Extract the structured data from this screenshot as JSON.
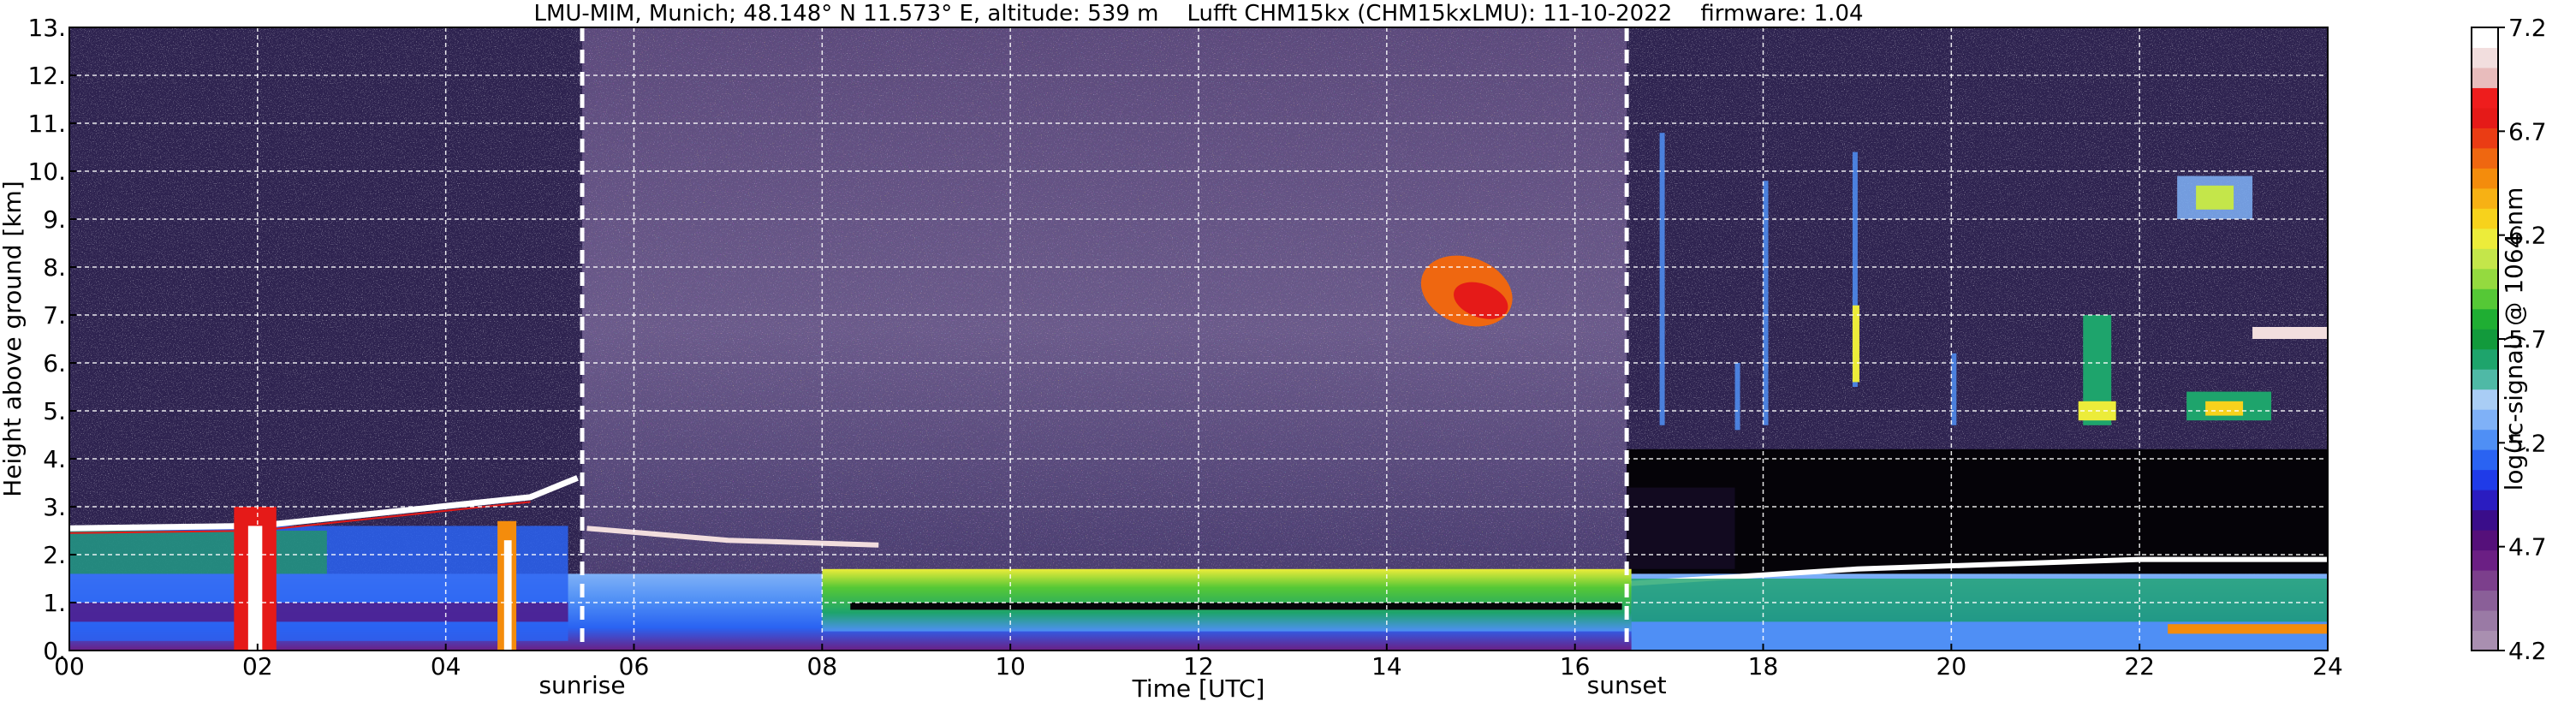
{
  "chart_data": {
    "type": "heatmap",
    "title": "LMU-MIM, Munich; 48.148° N 11.573° E, altitude: 539 m    Lufft CHM15kx (CHM15kxLMU): 11-10-2022    firmware: 1.04",
    "xlabel": "Time [UTC]",
    "ylabel": "Height above ground [km]",
    "xlim": [
      0,
      24
    ],
    "ylim": [
      0,
      13
    ],
    "x_ticks": [
      0,
      2,
      4,
      6,
      8,
      10,
      12,
      14,
      16,
      18,
      20,
      22,
      24
    ],
    "x_tick_labels": [
      "00",
      "02",
      "04",
      "06",
      "08",
      "10",
      "12",
      "14",
      "16",
      "18",
      "20",
      "22",
      "24"
    ],
    "y_ticks": [
      0,
      1,
      2,
      3,
      4,
      5,
      6,
      7,
      8,
      9,
      10,
      11,
      12,
      13
    ],
    "y_tick_labels": [
      "0.",
      "1.",
      "2.",
      "3.",
      "4.",
      "5.",
      "6.",
      "7.",
      "8.",
      "9.",
      "10.",
      "11.",
      "12.",
      "13."
    ],
    "grid": true,
    "markers": [
      {
        "label": "sunrise",
        "x": 5.45
      },
      {
        "label": "sunset",
        "x": 16.55
      }
    ],
    "colorbar": {
      "label": "log(rc-signal) @ 1064 nm",
      "min": 4.2,
      "max": 7.2,
      "tick_values": [
        4.2,
        4.7,
        5.2,
        5.7,
        6.2,
        6.7,
        7.2
      ],
      "tick_labels": [
        "4.2",
        "4.7",
        "5.2",
        "5.7",
        "6.2",
        "6.7",
        "7.2"
      ],
      "colors": [
        "#a98fb0",
        "#9a7aa5",
        "#8a5f98",
        "#7c3f8c",
        "#6b1f84",
        "#55107a",
        "#3a0d8a",
        "#2a1cc0",
        "#1f3be8",
        "#2a63f2",
        "#4f8ff5",
        "#7fb1f7",
        "#a9cdf5",
        "#4fb9a6",
        "#1ea46c",
        "#129a3c",
        "#1fae33",
        "#55c836",
        "#94da3f",
        "#c4e64a",
        "#ecec3a",
        "#f7d21c",
        "#f7b114",
        "#f48c0c",
        "#ef6710",
        "#ea3c14",
        "#e51a18",
        "#ee1d1d",
        "#e8bcbc",
        "#f2dede",
        "#ffffff"
      ]
    },
    "regions": [
      {
        "kind": "boundary_layer",
        "x": [
          0,
          24
        ],
        "y": [
          0,
          1.9
        ]
      },
      {
        "kind": "aerosol_layer_top",
        "x": [
          0,
          5.4
        ],
        "y": [
          2.3,
          3.7
        ]
      },
      {
        "kind": "noise_daylight",
        "x": [
          5.45,
          16.55
        ],
        "y": [
          1.5,
          13
        ]
      },
      {
        "kind": "cirrus_cloud",
        "x": [
          14.4,
          15.4
        ],
        "y": [
          6.8,
          8.2
        ]
      },
      {
        "kind": "cirrus_cloud",
        "x": [
          22.3,
          23.2
        ],
        "y": [
          8.9,
          9.9
        ]
      },
      {
        "kind": "mid_level_cloud",
        "x": [
          21.4,
          24
        ],
        "y": [
          4.6,
          7.0
        ]
      },
      {
        "kind": "precipitation_streak",
        "x": [
          1.7,
          2.2
        ],
        "y": [
          0,
          3.0
        ]
      },
      {
        "kind": "precipitation_streak",
        "x": [
          4.5,
          4.8
        ],
        "y": [
          0,
          2.8
        ]
      }
    ]
  }
}
